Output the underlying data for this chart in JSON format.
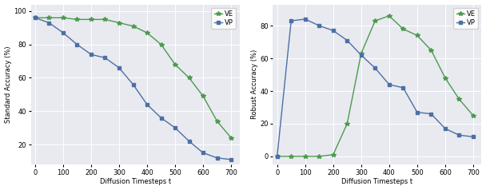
{
  "xlabel": "Diffusion Timesteps t",
  "left_ylabel": "Standard Accuracy (%)",
  "right_ylabel": "Robust Accuracy (%)",
  "left_VE_x": [
    0,
    50,
    100,
    150,
    200,
    250,
    300,
    350,
    400,
    450,
    500,
    550,
    600,
    650,
    700
  ],
  "left_VE_y": [
    96,
    96,
    96,
    95,
    95,
    95,
    93,
    91,
    87,
    80,
    68,
    60,
    49,
    34,
    24
  ],
  "left_VP_x": [
    0,
    50,
    100,
    150,
    200,
    250,
    300,
    350,
    400,
    450,
    500,
    550,
    600,
    650,
    700
  ],
  "left_VP_y": [
    96,
    93,
    87,
    80,
    74,
    72,
    66,
    56,
    44,
    36,
    30,
    22,
    15,
    12,
    11
  ],
  "right_VE_x": [
    0,
    50,
    100,
    150,
    200,
    250,
    300,
    350,
    400,
    450,
    500,
    550,
    600,
    650,
    700
  ],
  "right_VE_y": [
    0,
    0,
    0,
    0,
    1,
    20,
    63,
    83,
    86,
    78,
    74,
    65,
    48,
    35,
    25
  ],
  "right_VP_x": [
    0,
    50,
    100,
    150,
    200,
    250,
    300,
    350,
    400,
    450,
    500,
    550,
    600,
    650,
    700
  ],
  "right_VP_y": [
    0,
    83,
    84,
    80,
    77,
    71,
    62,
    54,
    44,
    42,
    27,
    26,
    17,
    13,
    12
  ],
  "ve_color": "#4c9a4c",
  "vp_color": "#4c6fa5",
  "bg_color": "#e8eaf0",
  "marker_ve": "*",
  "marker_vp": "s",
  "marker_size_ve": 4,
  "marker_size_vp": 3,
  "linewidth": 1.0,
  "tick_fontsize": 6,
  "label_fontsize": 6,
  "legend_fontsize": 6
}
